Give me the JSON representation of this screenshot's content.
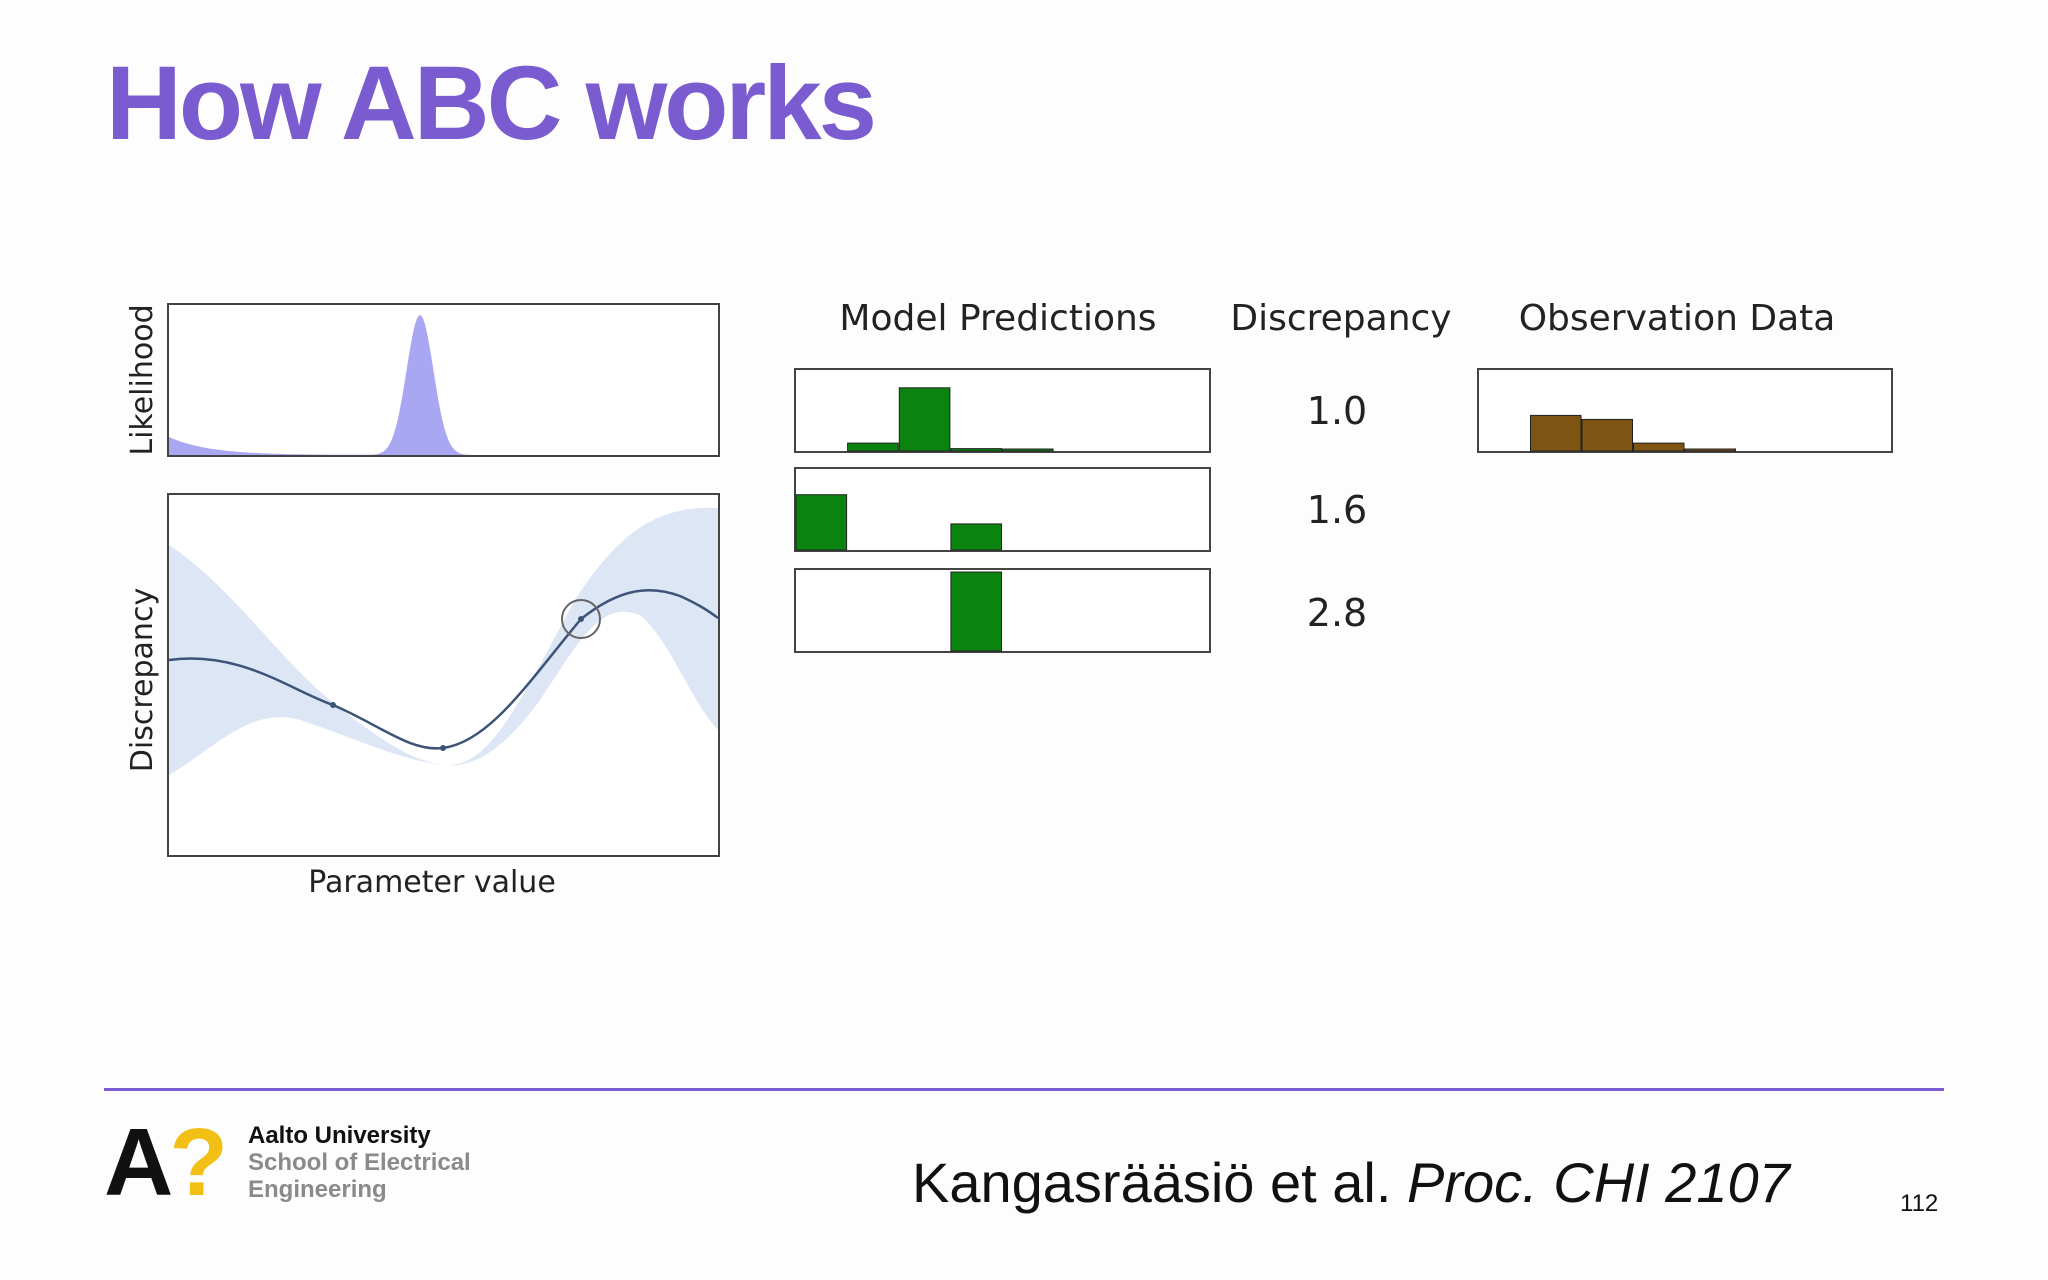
{
  "slide": {
    "title": "How ABC works",
    "page_number": "112"
  },
  "figure": {
    "likelihood_label": "Likelihood",
    "discrepancy_axis_label": "Discrepancy",
    "parameter_label": "Parameter value",
    "model_predictions_header": "Model Predictions",
    "discrepancy_header": "Discrepancy",
    "observation_header": "Observation Data",
    "discrepancy_values": [
      "1.0",
      "1.6",
      "2.8"
    ],
    "colors": {
      "likelihood_fill": "#aaa7f2",
      "uncertainty_band": "#dde6f5",
      "curve": "#3d5478",
      "prediction_bars": "#0a840f",
      "observation_bars": "#7d5412"
    },
    "predictions": [
      [
        0,
        0.1,
        0.8,
        0.03,
        0.01,
        0,
        0,
        0
      ],
      [
        0.7,
        0,
        0,
        0.33,
        0,
        0,
        0,
        0
      ],
      [
        0,
        0,
        0,
        1.0,
        0,
        0,
        0,
        0
      ]
    ],
    "observation": [
      0,
      0.45,
      0.4,
      0.1,
      0.02,
      0,
      0,
      0
    ]
  },
  "footer": {
    "logo_letter": "A",
    "logo_mark": "?",
    "university": "Aalto University",
    "school_line1": "School of Electrical",
    "school_line2": "Engineering",
    "citation_authors": "Kangasrääsiö et al. ",
    "citation_venue": "Proc. CHI 2107"
  }
}
